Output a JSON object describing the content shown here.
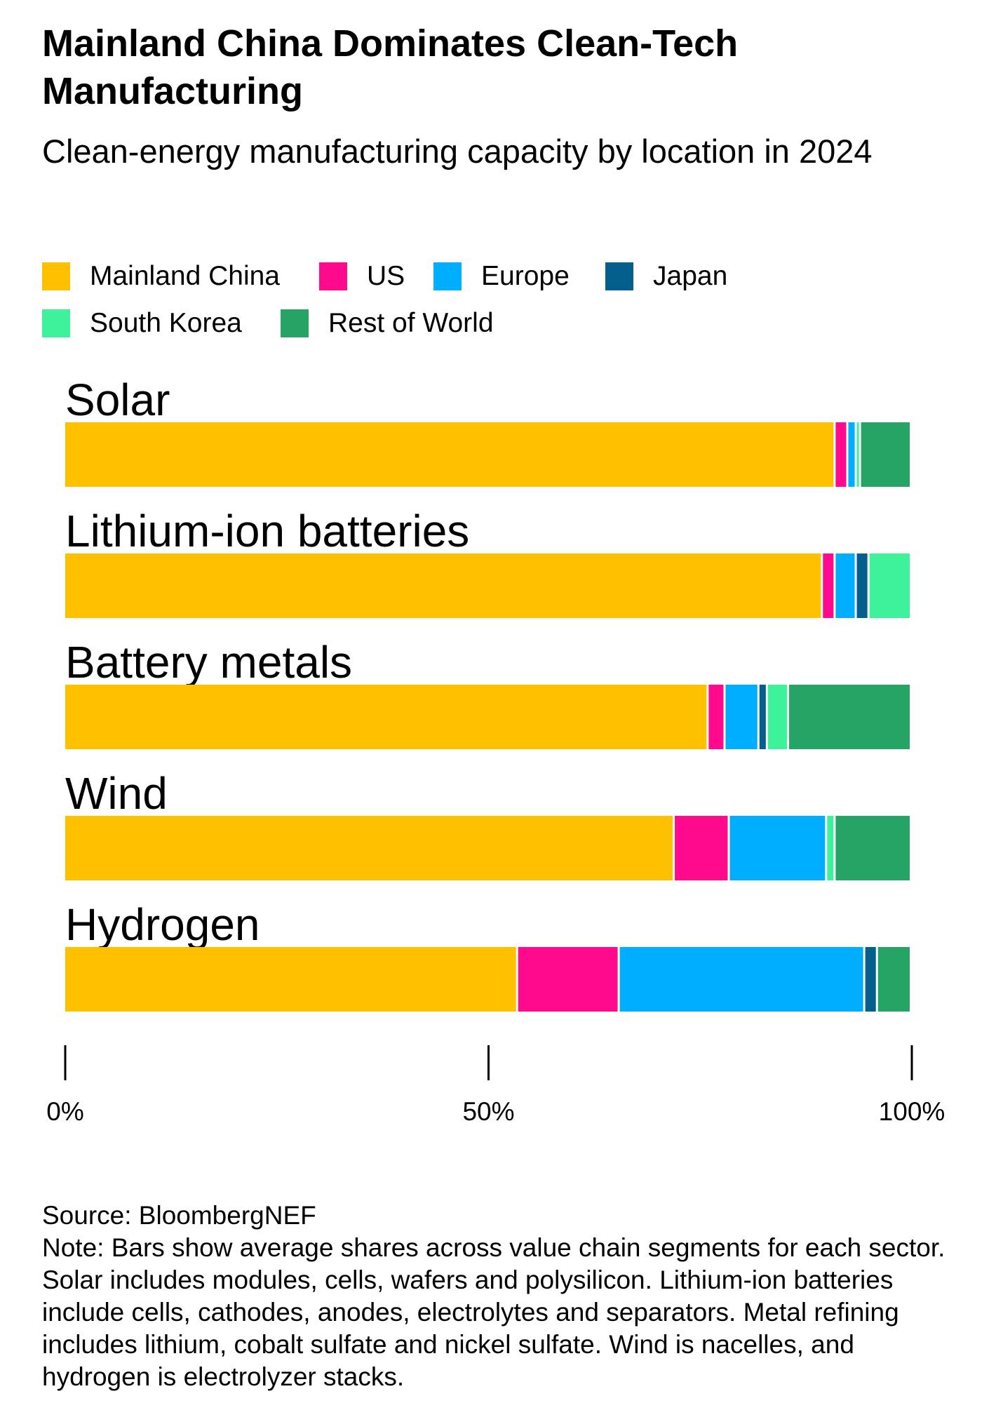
{
  "title": "Mainland China Dominates Clean-Tech Manufacturing",
  "subtitle": "Clean-energy manufacturing capacity by location in 2024",
  "legend": [
    {
      "label": "Mainland China",
      "color": "#FFC000"
    },
    {
      "label": "US",
      "color": "#FF0A8C"
    },
    {
      "label": "Europe",
      "color": "#00AEFF"
    },
    {
      "label": "Japan",
      "color": "#045F8C"
    },
    {
      "label": "South Korea",
      "color": "#3EF29A"
    },
    {
      "label": "Rest of World",
      "color": "#26A465"
    }
  ],
  "chart_data": {
    "type": "bar",
    "orientation": "horizontal",
    "stacked": true,
    "categories": [
      "Solar",
      "Lithium-ion batteries",
      "Battery metals",
      "Wind",
      "Hydrogen"
    ],
    "series": [
      {
        "name": "Mainland China",
        "color": "#FFC000",
        "values": [
          91,
          89.5,
          76,
          72,
          53.5
        ]
      },
      {
        "name": "US",
        "color": "#FF0A8C",
        "values": [
          1.5,
          1.5,
          2,
          6.5,
          12
        ]
      },
      {
        "name": "Europe",
        "color": "#00AEFF",
        "values": [
          1,
          2.5,
          4,
          11.5,
          29
        ]
      },
      {
        "name": "Japan",
        "color": "#045F8C",
        "values": [
          0,
          1.5,
          1,
          0,
          1.5
        ]
      },
      {
        "name": "South Korea",
        "color": "#3EF29A",
        "values": [
          0.5,
          5,
          2.5,
          1,
          0
        ]
      },
      {
        "name": "Rest of World",
        "color": "#26A465",
        "values": [
          6,
          0,
          14.5,
          9,
          4
        ]
      }
    ],
    "xticks": [
      "0%",
      "50%",
      "100%"
    ],
    "xlim": [
      0,
      100
    ],
    "grid": false,
    "legend_position": "top"
  },
  "footer": {
    "source": "Source: BloombergNEF",
    "note": "Note: Bars show average shares across value chain segments for each sector. Solar includes modules, cells, wafers and polysilicon. Lithium-ion batteries include cells, cathodes, anodes, electrolytes and separators. Metal refining includes lithium, cobalt sulfate and nickel sulfate. Wind is nacelles, and hydrogen is electrolyzer stacks."
  }
}
